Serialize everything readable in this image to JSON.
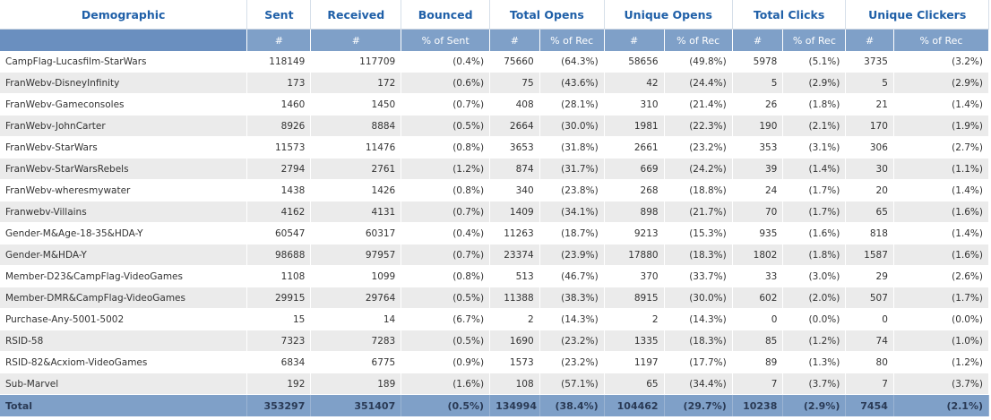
{
  "headers": {
    "demographic": "Demographic",
    "sent": "Sent",
    "received": "Received",
    "bounced": "Bounced",
    "total_opens": "Total Opens",
    "unique_opens": "Unique Opens",
    "total_clicks": "Total Clicks",
    "unique_clickers": "Unique Clickers"
  },
  "subheaders": {
    "count": "#",
    "pct_sent": "% of Sent",
    "pct_rec": "% of Rec"
  },
  "rows": [
    [
      "CampFlag-Lucasfilm-StarWars",
      "118149",
      "117709",
      "(0.4%)",
      "75660",
      "(64.3%)",
      "58656",
      "(49.8%)",
      "5978",
      "(5.1%)",
      "3735",
      "(3.2%)"
    ],
    [
      "FranWebv-DisneyInfinity",
      "173",
      "172",
      "(0.6%)",
      "75",
      "(43.6%)",
      "42",
      "(24.4%)",
      "5",
      "(2.9%)",
      "5",
      "(2.9%)"
    ],
    [
      "FranWebv-Gameconsoles",
      "1460",
      "1450",
      "(0.7%)",
      "408",
      "(28.1%)",
      "310",
      "(21.4%)",
      "26",
      "(1.8%)",
      "21",
      "(1.4%)"
    ],
    [
      "FranWebv-JohnCarter",
      "8926",
      "8884",
      "(0.5%)",
      "2664",
      "(30.0%)",
      "1981",
      "(22.3%)",
      "190",
      "(2.1%)",
      "170",
      "(1.9%)"
    ],
    [
      "FranWebv-StarWars",
      "11573",
      "11476",
      "(0.8%)",
      "3653",
      "(31.8%)",
      "2661",
      "(23.2%)",
      "353",
      "(3.1%)",
      "306",
      "(2.7%)"
    ],
    [
      "FranWebv-StarWarsRebels",
      "2794",
      "2761",
      "(1.2%)",
      "874",
      "(31.7%)",
      "669",
      "(24.2%)",
      "39",
      "(1.4%)",
      "30",
      "(1.1%)"
    ],
    [
      "FranWebv-wheresmywater",
      "1438",
      "1426",
      "(0.8%)",
      "340",
      "(23.8%)",
      "268",
      "(18.8%)",
      "24",
      "(1.7%)",
      "20",
      "(1.4%)"
    ],
    [
      "Franwebv-Villains",
      "4162",
      "4131",
      "(0.7%)",
      "1409",
      "(34.1%)",
      "898",
      "(21.7%)",
      "70",
      "(1.7%)",
      "65",
      "(1.6%)"
    ],
    [
      "Gender-M&Age-18-35&HDA-Y",
      "60547",
      "60317",
      "(0.4%)",
      "11263",
      "(18.7%)",
      "9213",
      "(15.3%)",
      "935",
      "(1.6%)",
      "818",
      "(1.4%)"
    ],
    [
      "Gender-M&HDA-Y",
      "98688",
      "97957",
      "(0.7%)",
      "23374",
      "(23.9%)",
      "17880",
      "(18.3%)",
      "1802",
      "(1.8%)",
      "1587",
      "(1.6%)"
    ],
    [
      "Member-D23&CampFlag-VideoGames",
      "1108",
      "1099",
      "(0.8%)",
      "513",
      "(46.7%)",
      "370",
      "(33.7%)",
      "33",
      "(3.0%)",
      "29",
      "(2.6%)"
    ],
    [
      "Member-DMR&CampFlag-VideoGames",
      "29915",
      "29764",
      "(0.5%)",
      "11388",
      "(38.3%)",
      "8915",
      "(30.0%)",
      "602",
      "(2.0%)",
      "507",
      "(1.7%)"
    ],
    [
      "Purchase-Any-5001-5002",
      "15",
      "14",
      "(6.7%)",
      "2",
      "(14.3%)",
      "2",
      "(14.3%)",
      "0",
      "(0.0%)",
      "0",
      "(0.0%)"
    ],
    [
      "RSID-58",
      "7323",
      "7283",
      "(0.5%)",
      "1690",
      "(23.2%)",
      "1335",
      "(18.3%)",
      "85",
      "(1.2%)",
      "74",
      "(1.0%)"
    ],
    [
      "RSID-82&Acxiom-VideoGames",
      "6834",
      "6775",
      "(0.9%)",
      "1573",
      "(23.2%)",
      "1197",
      "(17.7%)",
      "89",
      "(1.3%)",
      "80",
      "(1.2%)"
    ],
    [
      "Sub-Marvel",
      "192",
      "189",
      "(1.6%)",
      "108",
      "(57.1%)",
      "65",
      "(34.4%)",
      "7",
      "(3.7%)",
      "7",
      "(3.7%)"
    ]
  ],
  "total": [
    "Total",
    "353297",
    "351407",
    "(0.5%)",
    "134994",
    "(38.4%)",
    "104462",
    "(29.7%)",
    "10238",
    "(2.9%)",
    "7454",
    "(2.1%)"
  ]
}
